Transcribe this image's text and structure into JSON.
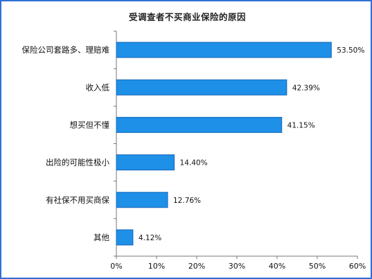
{
  "chart_data": {
    "type": "bar",
    "orientation": "horizontal",
    "title": "受调查者不买商业保险的原因",
    "categories": [
      "保险公司套路多、理赔难",
      "收入低",
      "想买但不懂",
      "出险的可能性极小",
      "有社保不用买商保",
      "其他"
    ],
    "values": [
      53.5,
      42.39,
      41.15,
      14.4,
      12.76,
      4.12
    ],
    "value_labels": [
      "53.50%",
      "42.39%",
      "41.15%",
      "14.40%",
      "12.76%",
      "4.12%"
    ],
    "xlim": [
      0,
      60
    ],
    "xticks": [
      "0%",
      "10%",
      "20%",
      "30%",
      "40%",
      "50%",
      "60%"
    ],
    "grid": false,
    "bar_color": "#1e90e8",
    "bar_edge_color": "#1666b8"
  }
}
